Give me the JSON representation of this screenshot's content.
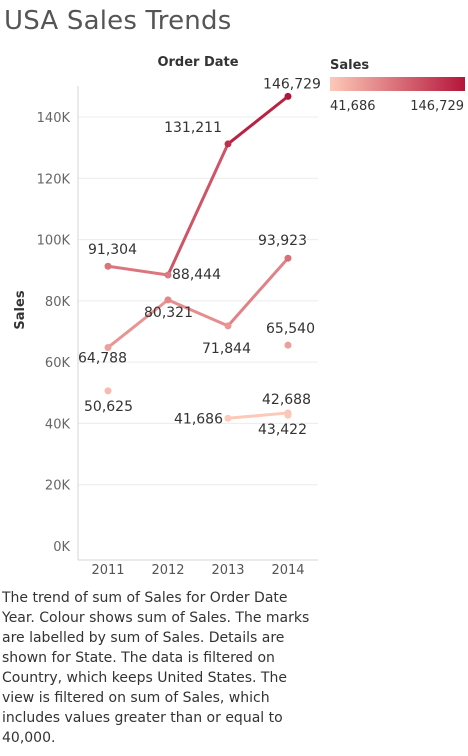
{
  "title": "USA Sales Trends",
  "column_header": "Order Date",
  "y_axis_title": "Sales",
  "legend": {
    "title": "Sales",
    "min_label": "41,686",
    "max_label": "146,729",
    "color_low": "#fdc9b8",
    "color_high": "#b4153a"
  },
  "description": "The trend of sum of Sales for Order Date Year.  Colour shows sum of Sales.  The marks are labelled by sum of Sales.  Details are shown for State. The data is filtered on Country, which keeps United States. The view is filtered on sum of Sales, which includes values greater than or equal to 40,000.",
  "chart_data": {
    "type": "line",
    "categories": [
      "2011",
      "2012",
      "2013",
      "2014"
    ],
    "y_ticks": [
      "0K",
      "20K",
      "40K",
      "60K",
      "80K",
      "100K",
      "120K",
      "140K"
    ],
    "ylim": [
      0,
      150000
    ],
    "grid": true,
    "series": [
      {
        "points": [
          {
            "x": "2011",
            "y": 91304,
            "label": "91,304"
          },
          {
            "x": "2012",
            "y": 88444,
            "label": "88,444"
          },
          {
            "x": "2013",
            "y": 131211,
            "label": "131,211"
          },
          {
            "x": "2014",
            "y": 146729,
            "label": "146,729"
          }
        ]
      },
      {
        "points": [
          {
            "x": "2011",
            "y": 64788,
            "label": "64,788"
          },
          {
            "x": "2012",
            "y": 80321,
            "label": "80,321"
          },
          {
            "x": "2013",
            "y": 71844,
            "label": "71,844"
          },
          {
            "x": "2014",
            "y": 93923,
            "label": "93,923"
          }
        ]
      },
      {
        "points": [
          {
            "x": "2013",
            "y": 41686,
            "label": "41,686"
          },
          {
            "x": "2014",
            "y": 43422,
            "label": "43,422"
          }
        ]
      },
      {
        "points": [
          {
            "x": "2011",
            "y": 50625,
            "label": "50,625"
          }
        ]
      },
      {
        "points": [
          {
            "x": "2014",
            "y": 42688,
            "label": "42,688"
          }
        ]
      },
      {
        "points": [
          {
            "x": "2014",
            "y": 65540,
            "label": "65,540"
          }
        ]
      }
    ]
  }
}
